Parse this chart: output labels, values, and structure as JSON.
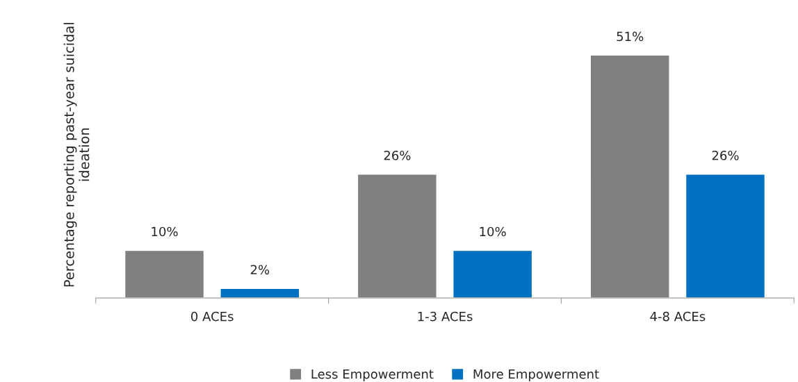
{
  "chart_data": {
    "type": "bar",
    "ylabel": "Percentage reporting past-year suicidal ideation",
    "categories": [
      "0 ACEs",
      "1-3 ACEs",
      "4-8 ACEs"
    ],
    "series": [
      {
        "name": "Less Empowerment",
        "color": "#808080",
        "values": [
          10,
          26,
          51
        ],
        "value_labels": [
          "10%",
          "26%",
          "51%"
        ]
      },
      {
        "name": "More Empowerment",
        "color": "#0070c0",
        "values": [
          2,
          10,
          26
        ],
        "value_labels": [
          "2%",
          "10%",
          "26%"
        ]
      }
    ],
    "legend": "bottom",
    "grid": false,
    "tick_labels": "x"
  }
}
